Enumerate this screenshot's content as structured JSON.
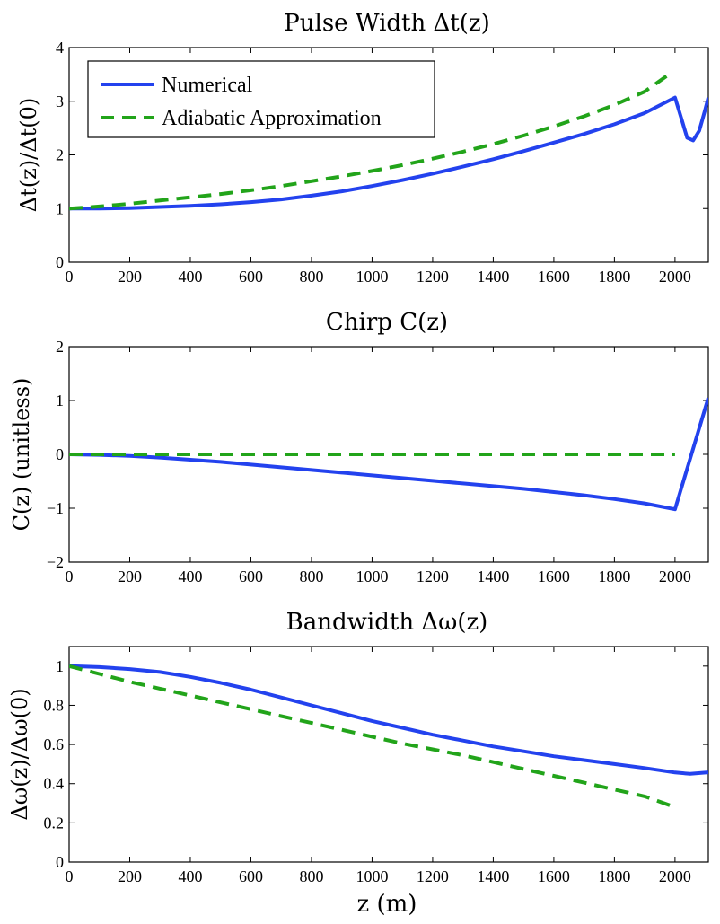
{
  "chart_data": [
    {
      "type": "line",
      "title": "Pulse Width Δt(z)",
      "xlabel": "",
      "ylabel": "Δt(z)/Δt(0)",
      "xlim": [
        0,
        2110
      ],
      "ylim": [
        0,
        4
      ],
      "xticks": [
        0,
        200,
        400,
        600,
        800,
        1000,
        1200,
        1400,
        1600,
        1800,
        2000
      ],
      "yticks": [
        0,
        1,
        2,
        3,
        4
      ],
      "ytick_labels": [
        "0",
        "1",
        "2",
        "3",
        "4"
      ],
      "legend": "top-left",
      "series": [
        {
          "name": "Numerical",
          "color": "#2342ee",
          "style": "solid",
          "x": [
            0,
            100,
            200,
            300,
            400,
            500,
            600,
            700,
            800,
            900,
            1000,
            1100,
            1200,
            1300,
            1400,
            1500,
            1600,
            1700,
            1800,
            1900,
            2000,
            2020,
            2040,
            2060,
            2080,
            2100,
            2110
          ],
          "y": [
            1.0,
            1.0,
            1.01,
            1.03,
            1.05,
            1.08,
            1.12,
            1.17,
            1.24,
            1.32,
            1.42,
            1.53,
            1.65,
            1.78,
            1.92,
            2.07,
            2.23,
            2.39,
            2.57,
            2.78,
            3.07,
            2.7,
            2.32,
            2.27,
            2.45,
            2.85,
            3.07
          ]
        },
        {
          "name": "Adiabatic Approximation",
          "color": "#22a41a",
          "style": "dashed",
          "x": [
            0,
            100,
            200,
            300,
            400,
            500,
            600,
            700,
            800,
            900,
            1000,
            1100,
            1200,
            1300,
            1400,
            1500,
            1600,
            1700,
            1800,
            1900,
            1980
          ],
          "y": [
            1.0,
            1.04,
            1.09,
            1.15,
            1.21,
            1.27,
            1.34,
            1.42,
            1.51,
            1.6,
            1.7,
            1.81,
            1.93,
            2.06,
            2.2,
            2.36,
            2.53,
            2.72,
            2.93,
            3.18,
            3.5
          ]
        }
      ]
    },
    {
      "type": "line",
      "title": "Chirp C(z)",
      "xlabel": "",
      "ylabel": "C(z) (unitless)",
      "xlim": [
        0,
        2110
      ],
      "ylim": [
        -2,
        2
      ],
      "xticks": [
        0,
        200,
        400,
        600,
        800,
        1000,
        1200,
        1400,
        1600,
        1800,
        2000
      ],
      "yticks": [
        -2,
        -1,
        0,
        1,
        2
      ],
      "ytick_labels": [
        "−2",
        "−1",
        "0",
        "1",
        "2"
      ],
      "series": [
        {
          "name": "Numerical",
          "color": "#2342ee",
          "style": "solid",
          "x": [
            0,
            100,
            200,
            300,
            400,
            500,
            600,
            700,
            800,
            900,
            1000,
            1100,
            1200,
            1300,
            1400,
            1500,
            1600,
            1700,
            1800,
            1900,
            2000,
            2110
          ],
          "y": [
            0.0,
            -0.01,
            -0.03,
            -0.06,
            -0.1,
            -0.14,
            -0.19,
            -0.24,
            -0.29,
            -0.34,
            -0.39,
            -0.44,
            -0.49,
            -0.54,
            -0.59,
            -0.64,
            -0.7,
            -0.76,
            -0.83,
            -0.91,
            -1.02,
            1.05
          ]
        },
        {
          "name": "Adiabatic Approximation",
          "color": "#22a41a",
          "style": "dashed",
          "x": [
            0,
            2000
          ],
          "y": [
            0,
            0
          ]
        }
      ]
    },
    {
      "type": "line",
      "title": "Bandwidth Δω(z)",
      "xlabel": "z (m)",
      "ylabel": "Δω(z)/Δω(0)",
      "xlim": [
        0,
        2110
      ],
      "ylim": [
        0,
        1.1
      ],
      "xticks": [
        0,
        200,
        400,
        600,
        800,
        1000,
        1200,
        1400,
        1600,
        1800,
        2000
      ],
      "yticks": [
        0,
        0.2,
        0.4,
        0.6,
        0.8,
        1
      ],
      "ytick_labels": [
        "0",
        "0.2",
        "0.4",
        "0.6",
        "0.8",
        "1"
      ],
      "series": [
        {
          "name": "Numerical",
          "color": "#2342ee",
          "style": "solid",
          "x": [
            0,
            100,
            200,
            300,
            400,
            500,
            600,
            700,
            800,
            900,
            1000,
            1100,
            1200,
            1300,
            1400,
            1500,
            1600,
            1700,
            1800,
            1900,
            2000,
            2050,
            2110
          ],
          "y": [
            1.0,
            0.995,
            0.985,
            0.97,
            0.945,
            0.915,
            0.88,
            0.84,
            0.8,
            0.76,
            0.72,
            0.685,
            0.65,
            0.62,
            0.59,
            0.565,
            0.54,
            0.52,
            0.5,
            0.48,
            0.457,
            0.45,
            0.458
          ]
        },
        {
          "name": "Adiabatic Approximation",
          "color": "#22a41a",
          "style": "dashed",
          "x": [
            0,
            100,
            200,
            300,
            400,
            500,
            600,
            700,
            800,
            900,
            1000,
            1100,
            1200,
            1300,
            1400,
            1500,
            1600,
            1700,
            1800,
            1900,
            2000
          ],
          "y": [
            1.0,
            0.96,
            0.92,
            0.885,
            0.85,
            0.815,
            0.78,
            0.745,
            0.71,
            0.675,
            0.64,
            0.605,
            0.575,
            0.545,
            0.51,
            0.475,
            0.44,
            0.405,
            0.37,
            0.335,
            0.28
          ]
        }
      ]
    }
  ]
}
